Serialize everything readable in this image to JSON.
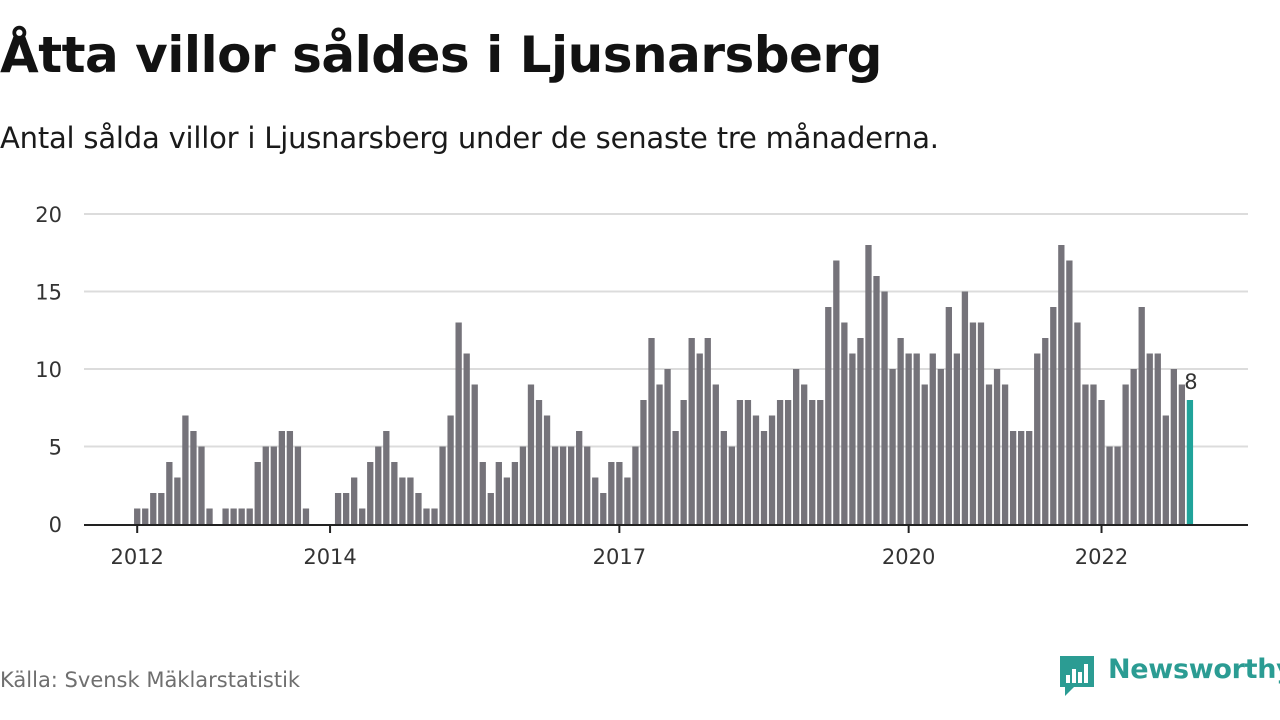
{
  "header": {
    "title": "Åtta villor såldes i Ljusnarsberg",
    "subtitle": "Antal sålda villor i Ljusnarsberg under de senaste tre månaderna."
  },
  "footer": {
    "source": "Källa: Svensk Mäklarstatistik",
    "brand": "Newsworthy",
    "brand_icon": "newsworthy-logo-icon"
  },
  "colors": {
    "bar": "#75737a",
    "highlight": "#20a39a",
    "grid": "#dcdcdc",
    "axis": "#222222",
    "brand": "#2b9c93"
  },
  "chart_data": {
    "type": "bar",
    "title": "Åtta villor såldes i Ljusnarsberg",
    "subtitle": "Antal sålda villor i Ljusnarsberg under de senaste tre månaderna.",
    "xlabel": "",
    "ylabel": "",
    "ylim": [
      0,
      20
    ],
    "yticks": [
      0,
      5,
      10,
      15,
      20
    ],
    "xticks": [
      {
        "label": "2012",
        "index": 0
      },
      {
        "label": "2014",
        "index": 24
      },
      {
        "label": "2017",
        "index": 60
      },
      {
        "label": "2020",
        "index": 96
      },
      {
        "label": "2022",
        "index": 120
      }
    ],
    "x_start": "2012-01",
    "frequency": "monthly",
    "grid": true,
    "highlight_last": true,
    "last_value_label": "8",
    "values": [
      1,
      1,
      2,
      2,
      4,
      3,
      7,
      6,
      5,
      1,
      0,
      1,
      1,
      1,
      1,
      4,
      5,
      5,
      6,
      6,
      5,
      1,
      0,
      0,
      0,
      2,
      2,
      3,
      1,
      4,
      5,
      6,
      4,
      3,
      3,
      2,
      1,
      1,
      5,
      7,
      13,
      11,
      9,
      4,
      2,
      4,
      3,
      4,
      5,
      9,
      8,
      7,
      5,
      5,
      5,
      6,
      5,
      3,
      2,
      4,
      4,
      3,
      5,
      8,
      12,
      9,
      10,
      6,
      8,
      12,
      11,
      12,
      9,
      6,
      5,
      8,
      8,
      7,
      6,
      7,
      8,
      8,
      10,
      9,
      8,
      8,
      14,
      17,
      13,
      11,
      12,
      18,
      16,
      15,
      10,
      12,
      11,
      11,
      9,
      11,
      10,
      14,
      11,
      15,
      13,
      13,
      9,
      10,
      9,
      6,
      6,
      6,
      11,
      12,
      14,
      18,
      17,
      13,
      9,
      9,
      8,
      5,
      5,
      9,
      10,
      14,
      11,
      11,
      7,
      10,
      9,
      8
    ]
  }
}
